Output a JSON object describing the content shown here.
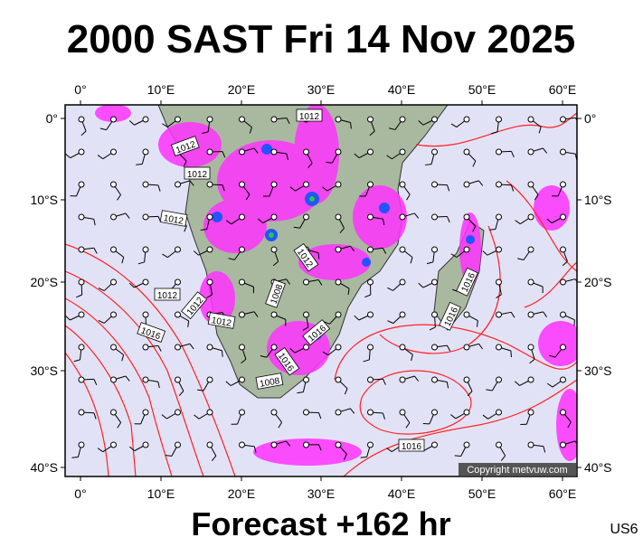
{
  "header": {
    "title": "2000 SAST Fri 14 Nov 2025"
  },
  "lon_labels": [
    "0°",
    "10°E",
    "20°E",
    "30°E",
    "40°E",
    "50°E",
    "60°E"
  ],
  "lat_labels": [
    "0°",
    "10°S",
    "20°S",
    "30°S",
    "40°S"
  ],
  "isobar_labels": [
    "1012",
    "1012",
    "1012",
    "1012",
    "1012",
    "1012",
    "1012",
    "1012",
    "1016",
    "1016",
    "1016",
    "1016",
    "1016",
    "1008",
    "1008",
    "1016"
  ],
  "copyright": "Copyright metvuw.com",
  "footer": {
    "forecast": "Forecast +162 hr",
    "code": "US6"
  }
}
